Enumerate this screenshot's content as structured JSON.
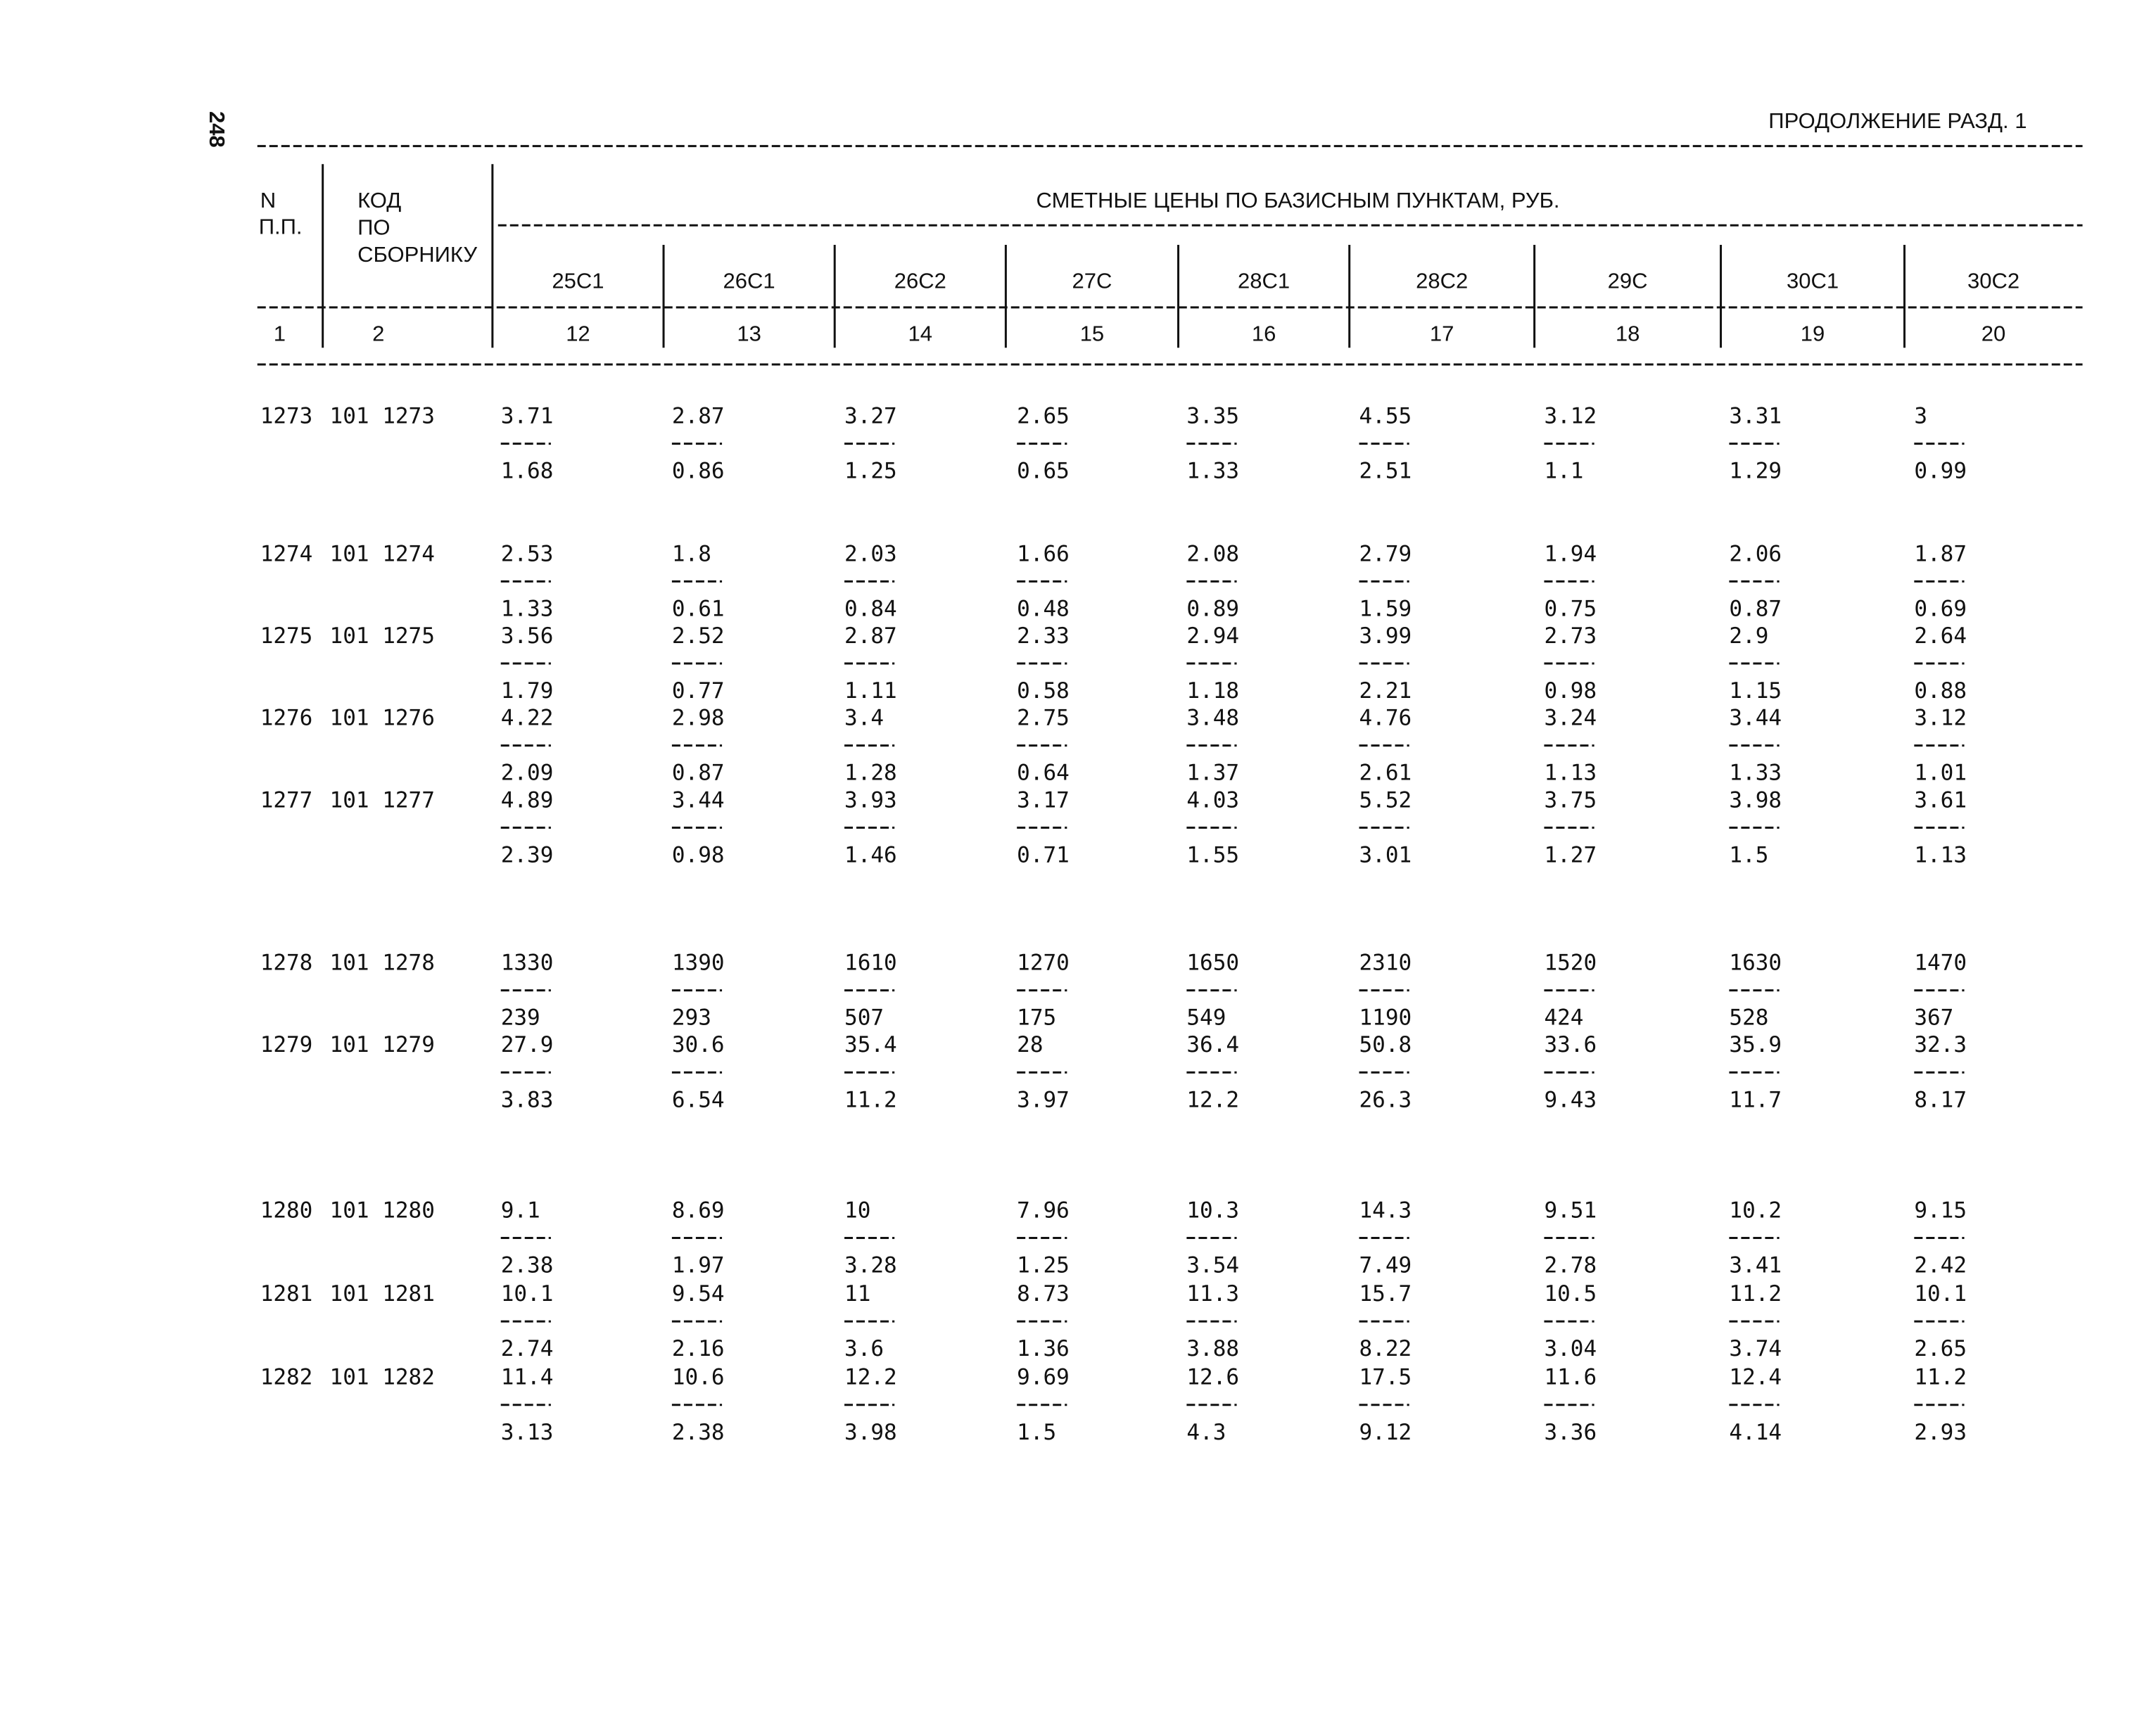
{
  "page_number": "248",
  "continuation": "ПРОДОЛЖЕНИЕ РАЗД. 1",
  "header": {
    "number_label": [
      "N",
      "П.П."
    ],
    "code_label": [
      "КОД",
      "ПО",
      "СБОРНИКУ"
    ],
    "group_title": "СМЕТНЫЕ ЦЕНЫ ПО БАЗИСНЫМ ПУНКТАМ, РУБ.",
    "columns": [
      "25С1",
      "26С1",
      "26С2",
      "27С",
      "28С1",
      "28С2",
      "29С",
      "30С1",
      "30С2"
    ],
    "column_numbers": [
      "1",
      "2",
      "12",
      "13",
      "14",
      "15",
      "16",
      "17",
      "18",
      "19",
      "20"
    ]
  },
  "rows": [
    {
      "n": "1273",
      "code": "101 1273",
      "top": [
        "3.71",
        "2.87",
        "3.27",
        "2.65",
        "3.35",
        "4.55",
        "3.12",
        "3.31",
        "3"
      ],
      "bottom": [
        "1.68",
        "0.86",
        "1.25",
        "0.65",
        "1.33",
        "2.51",
        "1.1",
        "1.29",
        "0.99"
      ]
    },
    {
      "n": "1274",
      "code": "101 1274",
      "top": [
        "2.53",
        "1.8",
        "2.03",
        "1.66",
        "2.08",
        "2.79",
        "1.94",
        "2.06",
        "1.87"
      ],
      "bottom": [
        "1.33",
        "0.61",
        "0.84",
        "0.48",
        "0.89",
        "1.59",
        "0.75",
        "0.87",
        "0.69"
      ]
    },
    {
      "n": "1275",
      "code": "101 1275",
      "top": [
        "3.56",
        "2.52",
        "2.87",
        "2.33",
        "2.94",
        "3.99",
        "2.73",
        "2.9",
        "2.64"
      ],
      "bottom": [
        "1.79",
        "0.77",
        "1.11",
        "0.58",
        "1.18",
        "2.21",
        "0.98",
        "1.15",
        "0.88"
      ]
    },
    {
      "n": "1276",
      "code": "101 1276",
      "top": [
        "4.22",
        "2.98",
        "3.4",
        "2.75",
        "3.48",
        "4.76",
        "3.24",
        "3.44",
        "3.12"
      ],
      "bottom": [
        "2.09",
        "0.87",
        "1.28",
        "0.64",
        "1.37",
        "2.61",
        "1.13",
        "1.33",
        "1.01"
      ]
    },
    {
      "n": "1277",
      "code": "101 1277",
      "top": [
        "4.89",
        "3.44",
        "3.93",
        "3.17",
        "4.03",
        "5.52",
        "3.75",
        "3.98",
        "3.61"
      ],
      "bottom": [
        "2.39",
        "0.98",
        "1.46",
        "0.71",
        "1.55",
        "3.01",
        "1.27",
        "1.5",
        "1.13"
      ]
    },
    {
      "n": "1278",
      "code": "101 1278",
      "top": [
        "1330",
        "1390",
        "1610",
        "1270",
        "1650",
        "2310",
        "1520",
        "1630",
        "1470"
      ],
      "bottom": [
        "239",
        "293",
        "507",
        "175",
        "549",
        "1190",
        "424",
        "528",
        "367"
      ]
    },
    {
      "n": "1279",
      "code": "101 1279",
      "top": [
        "27.9",
        "30.6",
        "35.4",
        "28",
        "36.4",
        "50.8",
        "33.6",
        "35.9",
        "32.3"
      ],
      "bottom": [
        "3.83",
        "6.54",
        "11.2",
        "3.97",
        "12.2",
        "26.3",
        "9.43",
        "11.7",
        "8.17"
      ]
    },
    {
      "n": "1280",
      "code": "101 1280",
      "top": [
        "9.1",
        "8.69",
        "10",
        "7.96",
        "10.3",
        "14.3",
        "9.51",
        "10.2",
        "9.15"
      ],
      "bottom": [
        "2.38",
        "1.97",
        "3.28",
        "1.25",
        "3.54",
        "7.49",
        "2.78",
        "3.41",
        "2.42"
      ]
    },
    {
      "n": "1281",
      "code": "101 1281",
      "top": [
        "10.1",
        "9.54",
        "11",
        "8.73",
        "11.3",
        "15.7",
        "10.5",
        "11.2",
        "10.1"
      ],
      "bottom": [
        "2.74",
        "2.16",
        "3.6",
        "1.36",
        "3.88",
        "8.22",
        "3.04",
        "3.74",
        "2.65"
      ]
    },
    {
      "n": "1282",
      "code": "101 1282",
      "top": [
        "11.4",
        "10.6",
        "12.2",
        "9.69",
        "12.6",
        "17.5",
        "11.6",
        "12.4",
        "11.2"
      ],
      "bottom": [
        "3.13",
        "2.38",
        "3.98",
        "1.5",
        "4.3",
        "9.12",
        "3.36",
        "4.14",
        "2.93"
      ]
    }
  ]
}
